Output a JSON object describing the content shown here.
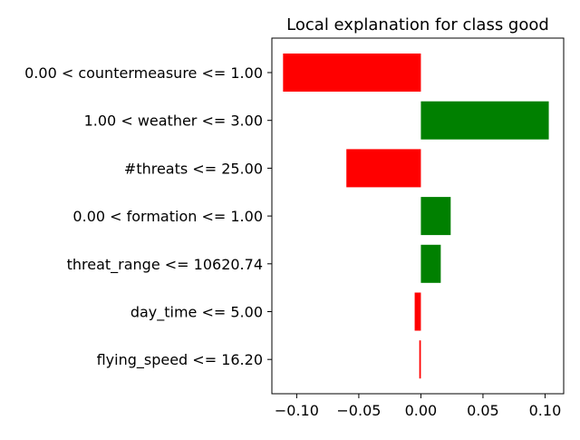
{
  "chart_data": {
    "type": "bar",
    "orientation": "horizontal",
    "title": "Local explanation for class good",
    "xlabel": "",
    "ylabel": "",
    "xlim": [
      -0.12,
      0.115
    ],
    "xticks": [
      -0.1,
      -0.05,
      0.0,
      0.05,
      0.1
    ],
    "xtick_labels": [
      "−0.10",
      "−0.05",
      "0.00",
      "0.05",
      "0.10"
    ],
    "grid": false,
    "legend": "none",
    "colors": {
      "positive": "#008000",
      "negative": "#ff0000",
      "axis": "#000000"
    },
    "categories": [
      "0.00 < countermeasure <= 1.00",
      "1.00 < weather <= 3.00",
      "#threats <= 25.00",
      "0.00 < formation <= 1.00",
      "threat_range <= 10620.74",
      "day_time <= 5.00",
      "flying_speed <= 16.20"
    ],
    "values": [
      -0.111,
      0.103,
      -0.06,
      0.024,
      0.016,
      -0.005,
      -0.0013
    ]
  }
}
